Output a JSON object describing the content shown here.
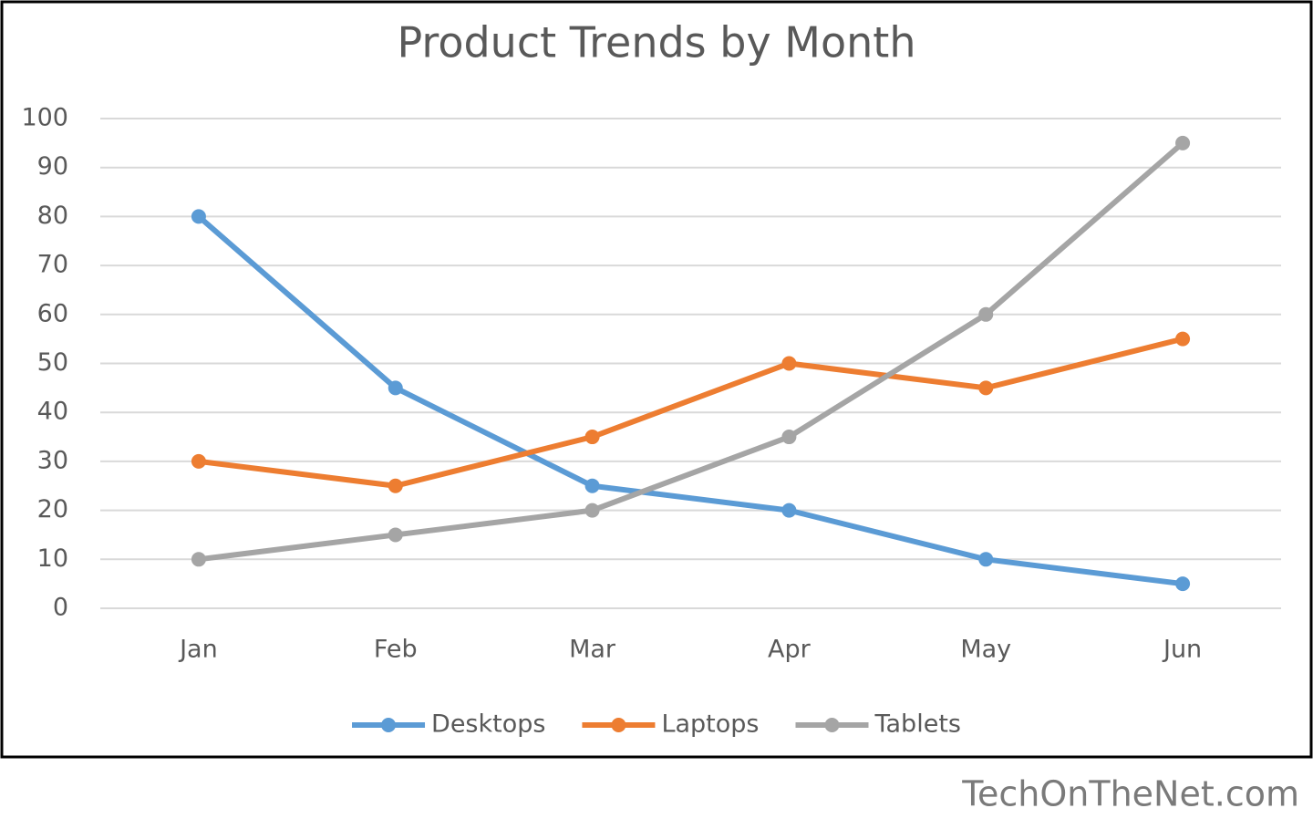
{
  "chart_data": {
    "type": "line",
    "title": "Product Trends by Month",
    "categories": [
      "Jan",
      "Feb",
      "Mar",
      "Apr",
      "May",
      "Jun"
    ],
    "series": [
      {
        "name": "Desktops",
        "color": "#5b9bd5",
        "values": [
          80,
          45,
          25,
          20,
          10,
          5
        ]
      },
      {
        "name": "Laptops",
        "color": "#ed7d31",
        "values": [
          30,
          25,
          35,
          50,
          45,
          55
        ]
      },
      {
        "name": "Tablets",
        "color": "#a5a5a5",
        "values": [
          10,
          15,
          20,
          35,
          60,
          95
        ]
      }
    ],
    "ylim": [
      0,
      100
    ],
    "yticks": [
      0,
      10,
      20,
      30,
      40,
      50,
      60,
      70,
      80,
      90,
      100
    ],
    "grid": true,
    "legend": "bottom"
  },
  "watermark": "TechOnTheNet.com"
}
